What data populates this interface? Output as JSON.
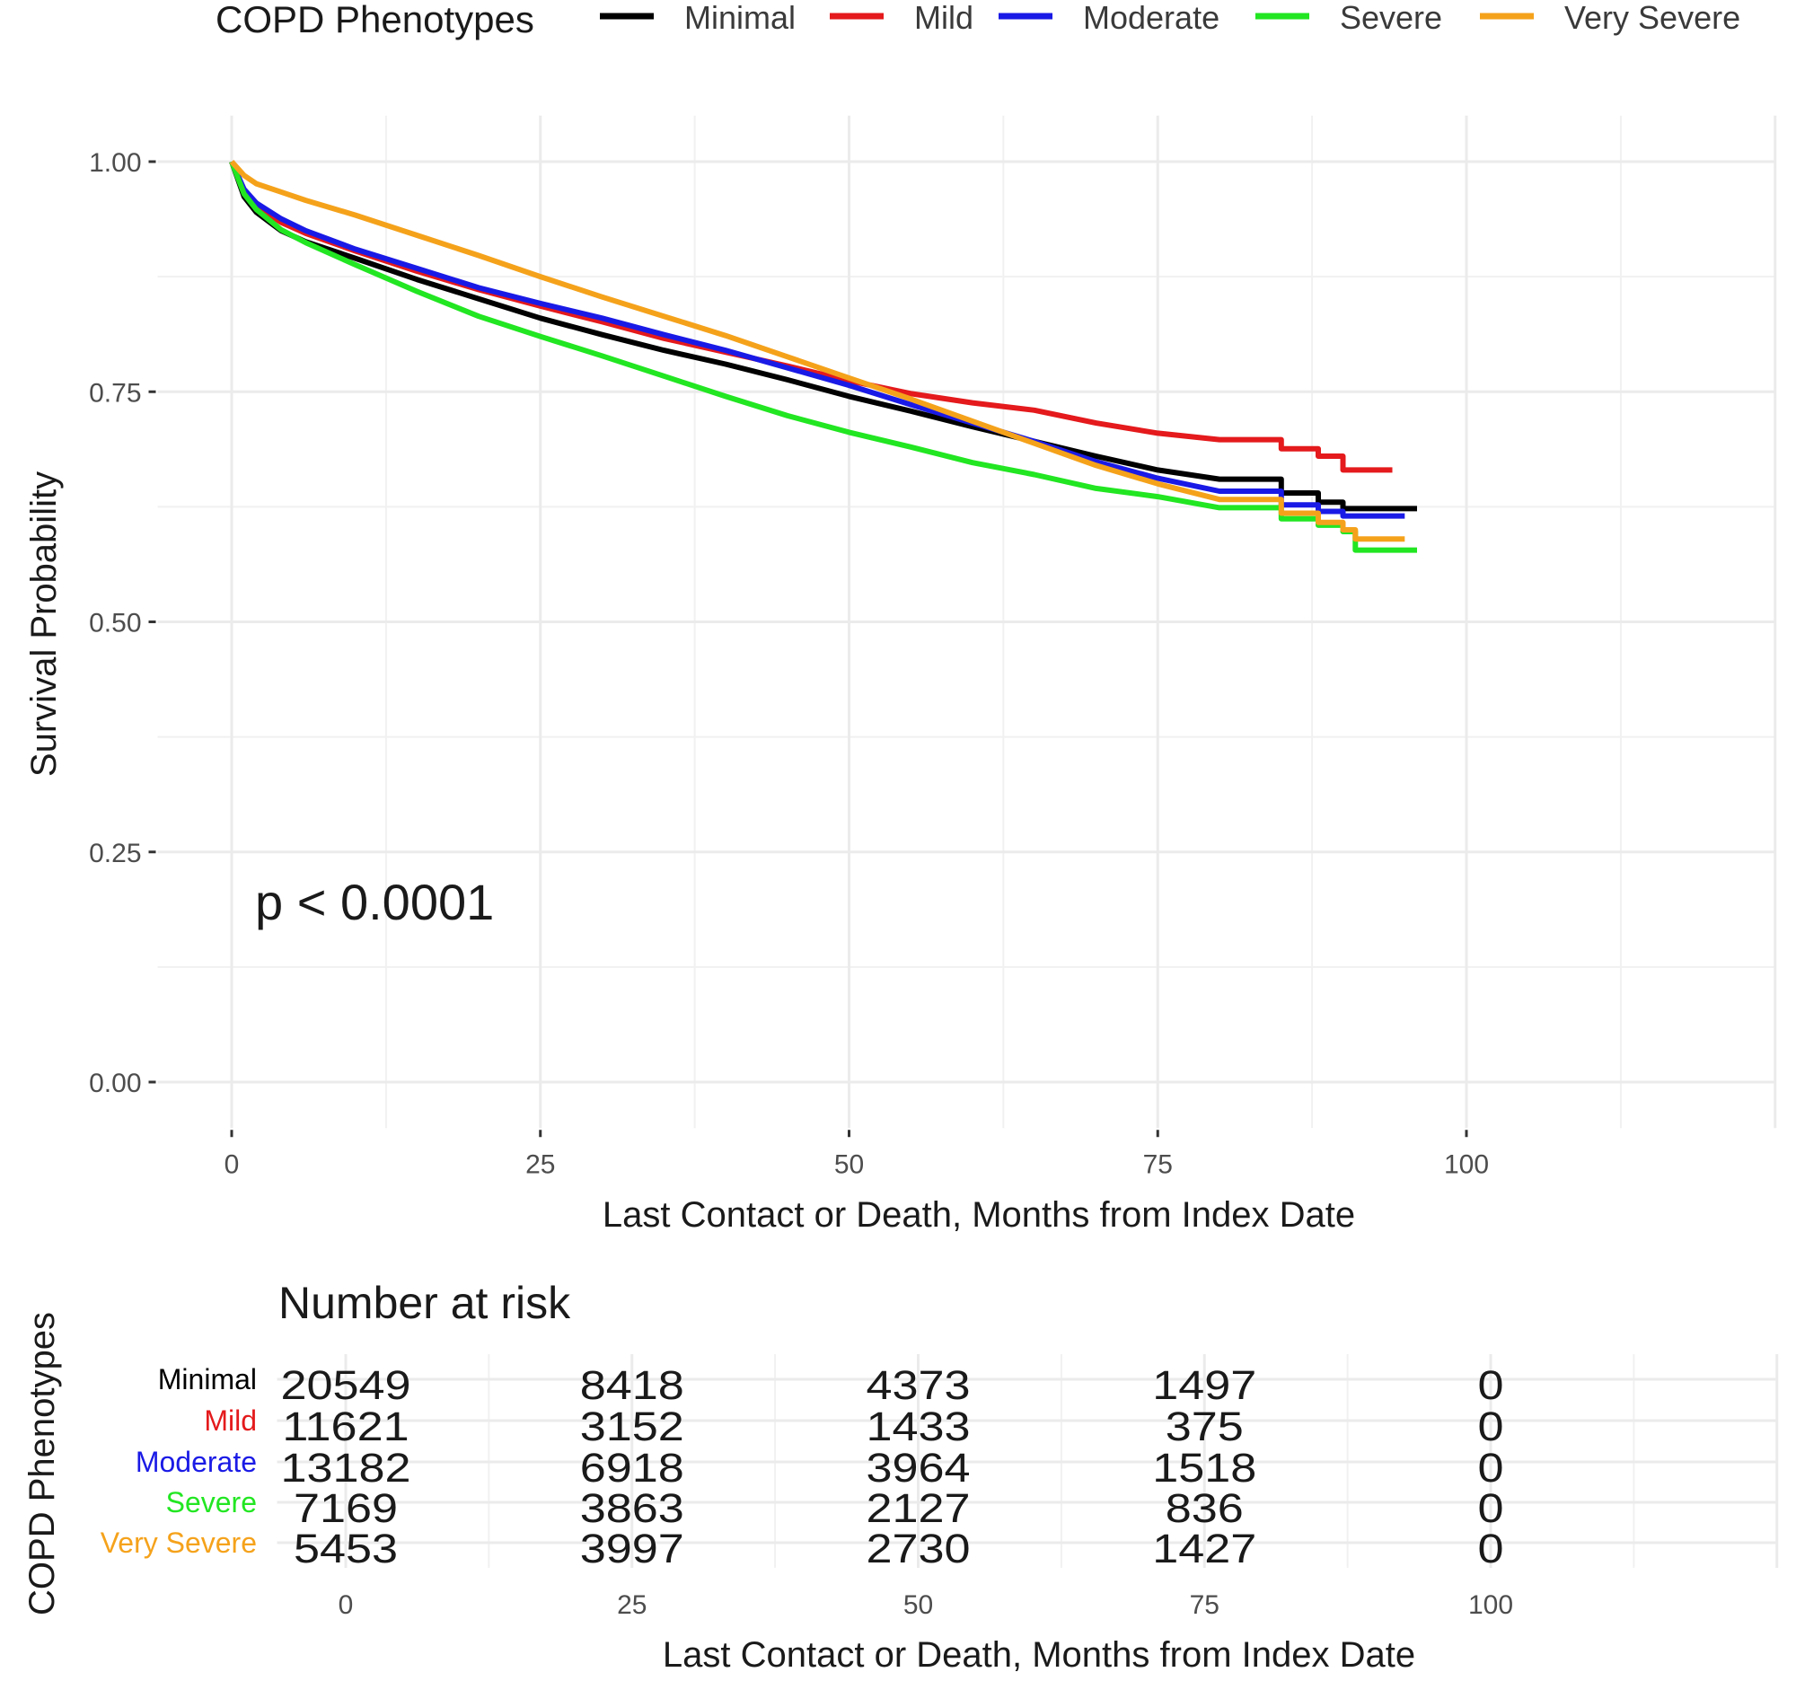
{
  "legend": {
    "title": "COPD Phenotypes",
    "items": [
      {
        "label": "Minimal",
        "color": "#000000"
      },
      {
        "label": "Mild",
        "color": "#e41a1c"
      },
      {
        "label": "Moderate",
        "color": "#1a1ae6"
      },
      {
        "label": "Severe",
        "color": "#22e622"
      },
      {
        "label": "Very Severe",
        "color": "#f5a21b"
      }
    ]
  },
  "chart_data": [
    {
      "type": "line",
      "subtype": "kaplan-meier step",
      "title": "",
      "xlabel": "Last Contact or Death, Months from Index Date",
      "ylabel": "Survival Probability",
      "xlim": [
        -6,
        125
      ],
      "ylim": [
        -0.05,
        1.05
      ],
      "xticks": [
        0,
        25,
        50,
        75,
        100
      ],
      "xtick_labels": [
        "0",
        "25",
        "50",
        "75",
        "100"
      ],
      "yticks": [
        0,
        0.25,
        0.5,
        0.75,
        1.0
      ],
      "ytick_labels": [
        "0.00",
        "0.25",
        "0.50",
        "0.75",
        "1.00"
      ],
      "grid": true,
      "legend_position": "top",
      "annotation": "p < 0.0001",
      "series": [
        {
          "name": "Minimal",
          "color": "#000000",
          "x": [
            0,
            1,
            2,
            4,
            6,
            10,
            15,
            20,
            25,
            30,
            35,
            40,
            45,
            50,
            55,
            60,
            65,
            70,
            75,
            80,
            85,
            88,
            90,
            96
          ],
          "y": [
            1.0,
            0.962,
            0.945,
            0.925,
            0.913,
            0.895,
            0.872,
            0.851,
            0.83,
            0.812,
            0.795,
            0.78,
            0.763,
            0.745,
            0.729,
            0.712,
            0.696,
            0.68,
            0.665,
            0.655,
            0.64,
            0.63,
            0.623,
            0.623
          ]
        },
        {
          "name": "Mild",
          "color": "#e41a1c",
          "x": [
            0,
            1,
            2,
            4,
            6,
            10,
            15,
            20,
            25,
            30,
            35,
            40,
            45,
            50,
            55,
            60,
            65,
            70,
            75,
            80,
            85,
            88,
            90,
            94
          ],
          "y": [
            1.0,
            0.968,
            0.952,
            0.934,
            0.922,
            0.903,
            0.881,
            0.861,
            0.843,
            0.826,
            0.808,
            0.793,
            0.778,
            0.762,
            0.748,
            0.738,
            0.73,
            0.716,
            0.705,
            0.698,
            0.688,
            0.68,
            0.665,
            0.665
          ]
        },
        {
          "name": "Moderate",
          "color": "#1a1ae6",
          "x": [
            0,
            1,
            2,
            4,
            6,
            10,
            15,
            20,
            25,
            30,
            35,
            40,
            45,
            50,
            55,
            60,
            65,
            70,
            75,
            80,
            85,
            88,
            90,
            95
          ],
          "y": [
            1.0,
            0.97,
            0.955,
            0.938,
            0.925,
            0.905,
            0.884,
            0.863,
            0.846,
            0.83,
            0.812,
            0.795,
            0.776,
            0.757,
            0.736,
            0.716,
            0.696,
            0.674,
            0.656,
            0.642,
            0.627,
            0.62,
            0.615,
            0.615
          ]
        },
        {
          "name": "Severe",
          "color": "#22e622",
          "x": [
            0,
            1,
            2,
            4,
            6,
            10,
            15,
            20,
            25,
            30,
            35,
            40,
            45,
            50,
            55,
            60,
            65,
            70,
            75,
            80,
            85,
            88,
            90,
            91,
            96
          ],
          "y": [
            1.0,
            0.965,
            0.948,
            0.926,
            0.912,
            0.888,
            0.859,
            0.832,
            0.81,
            0.789,
            0.767,
            0.745,
            0.724,
            0.706,
            0.69,
            0.673,
            0.66,
            0.645,
            0.636,
            0.624,
            0.612,
            0.605,
            0.598,
            0.578,
            0.578
          ]
        },
        {
          "name": "Very Severe",
          "color": "#f5a21b",
          "x": [
            0,
            1,
            2,
            4,
            6,
            10,
            15,
            20,
            25,
            30,
            35,
            40,
            45,
            50,
            55,
            60,
            65,
            70,
            75,
            80,
            85,
            88,
            90,
            91,
            95
          ],
          "y": [
            1.0,
            0.985,
            0.976,
            0.967,
            0.958,
            0.942,
            0.92,
            0.898,
            0.875,
            0.853,
            0.832,
            0.811,
            0.788,
            0.765,
            0.742,
            0.718,
            0.694,
            0.67,
            0.65,
            0.633,
            0.618,
            0.608,
            0.6,
            0.59,
            0.59
          ]
        }
      ]
    },
    {
      "type": "table",
      "title": "Number at risk",
      "xlabel": "Last Contact or Death, Months from Index Date",
      "ylabel": "COPD Phenotypes",
      "xlim": [
        -6,
        125
      ],
      "xticks": [
        0,
        25,
        50,
        75,
        100
      ],
      "xtick_labels": [
        "0",
        "25",
        "50",
        "75",
        "100"
      ],
      "rows": [
        {
          "name": "Minimal",
          "color": "#000000",
          "values": [
            "20549",
            "8418",
            "4373",
            "1497",
            "0"
          ]
        },
        {
          "name": "Mild",
          "color": "#e41a1c",
          "values": [
            "11621",
            "3152",
            "1433",
            "375",
            "0"
          ]
        },
        {
          "name": "Moderate",
          "color": "#1a1ae6",
          "values": [
            "13182",
            "6918",
            "3964",
            "1518",
            "0"
          ]
        },
        {
          "name": "Severe",
          "color": "#22e622",
          "values": [
            "7169",
            "3863",
            "2127",
            "836",
            "0"
          ]
        },
        {
          "name": "Very Severe",
          "color": "#f5a21b",
          "values": [
            "5453",
            "3997",
            "2730",
            "1427",
            "0"
          ]
        }
      ]
    }
  ]
}
